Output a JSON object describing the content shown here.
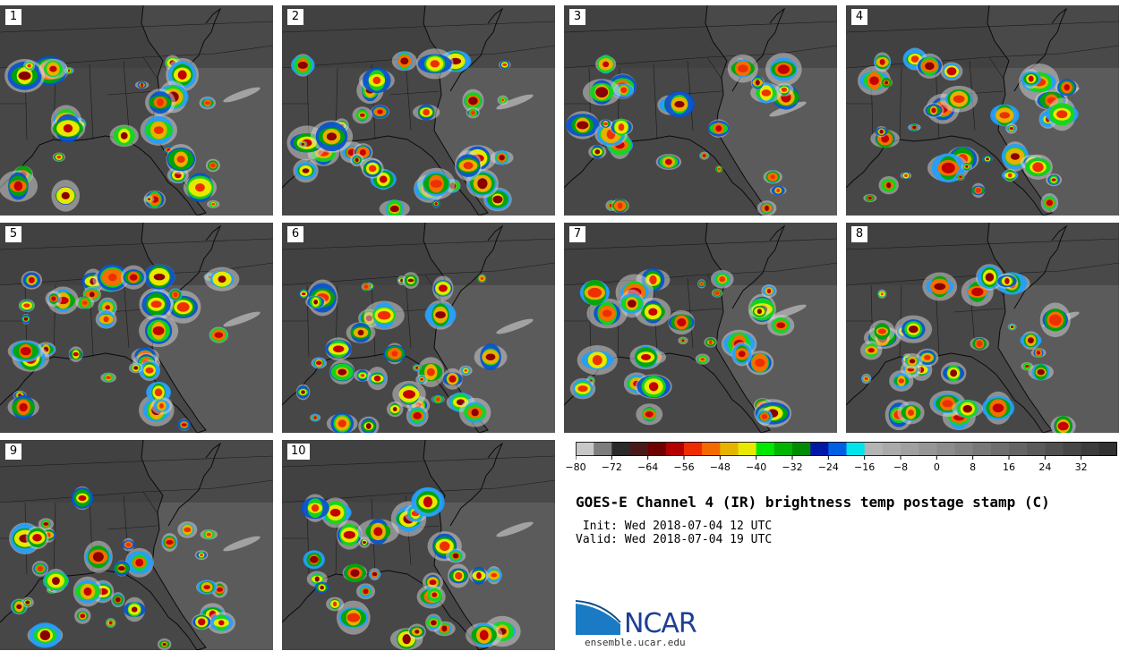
{
  "panels": [
    {
      "label": "1"
    },
    {
      "label": "2"
    },
    {
      "label": "3"
    },
    {
      "label": "4"
    },
    {
      "label": "5"
    },
    {
      "label": "6"
    },
    {
      "label": "7"
    },
    {
      "label": "8"
    },
    {
      "label": "9"
    },
    {
      "label": "10"
    }
  ],
  "colorbar": {
    "min": -80,
    "max": 40,
    "step": 4,
    "ticks": [
      "−80",
      "−72",
      "−64",
      "−56",
      "−48",
      "−40",
      "−32",
      "−24",
      "−16",
      "−8",
      "0",
      "8",
      "16",
      "24",
      "32"
    ],
    "tick_values": [
      -80,
      -72,
      -64,
      -56,
      -48,
      -40,
      -32,
      -24,
      -16,
      -8,
      0,
      8,
      16,
      24,
      32
    ],
    "colors": [
      "#c8c8c8",
      "#7d7d7d",
      "#2b2b2b",
      "#4a1a1a",
      "#6e0000",
      "#b40000",
      "#ee2c00",
      "#f56a00",
      "#e5b400",
      "#e8e800",
      "#00e800",
      "#00b400",
      "#008c00",
      "#0018a6",
      "#0060e4",
      "#00e4ec",
      "#b4b4b4",
      "#aaaaaa",
      "#a0a0a0",
      "#969696",
      "#8c8c8c",
      "#828282",
      "#787878",
      "#6e6e6e",
      "#646464",
      "#5a5a5a",
      "#505050",
      "#464646",
      "#3c3c3c",
      "#323232"
    ]
  },
  "title": "GOES-E Channel 4 (IR) brightness temp postage stamp (C)",
  "init": " Init: Wed 2018-07-04 12 UTC",
  "valid": "Valid: Wed 2018-07-04 19 UTC",
  "logo": {
    "text": "NCAR",
    "url": "ensemble.ucar.edu"
  }
}
